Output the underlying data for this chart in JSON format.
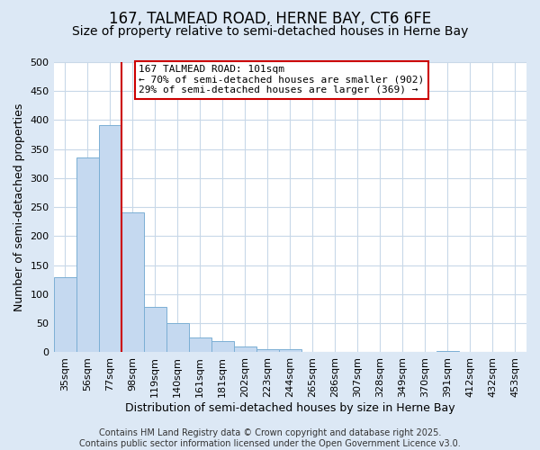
{
  "title_line1": "167, TALMEAD ROAD, HERNE BAY, CT6 6FE",
  "title_line2": "Size of property relative to semi-detached houses in Herne Bay",
  "xlabel": "Distribution of semi-detached houses by size in Herne Bay",
  "ylabel": "Number of semi-detached properties",
  "categories": [
    "35sqm",
    "56sqm",
    "77sqm",
    "98sqm",
    "119sqm",
    "140sqm",
    "161sqm",
    "181sqm",
    "202sqm",
    "223sqm",
    "244sqm",
    "265sqm",
    "286sqm",
    "307sqm",
    "328sqm",
    "349sqm",
    "370sqm",
    "391sqm",
    "412sqm",
    "432sqm",
    "453sqm"
  ],
  "values": [
    130,
    335,
    392,
    241,
    78,
    51,
    26,
    20,
    10,
    5,
    5,
    0,
    0,
    0,
    0,
    0,
    0,
    3,
    0,
    0,
    0
  ],
  "bar_color": "#c5d9f0",
  "bar_edge_color": "#7bafd4",
  "vline_color": "#cc0000",
  "vline_x_index": 3,
  "annotation_text": "167 TALMEAD ROAD: 101sqm\n← 70% of semi-detached houses are smaller (902)\n29% of semi-detached houses are larger (369) →",
  "annotation_box_facecolor": "white",
  "annotation_box_edgecolor": "#cc0000",
  "ylim": [
    0,
    500
  ],
  "yticks": [
    0,
    50,
    100,
    150,
    200,
    250,
    300,
    350,
    400,
    450,
    500
  ],
  "figure_facecolor": "#dce8f5",
  "plot_facecolor": "#ffffff",
  "grid_color": "#c8d8e8",
  "title1_fontsize": 12,
  "title2_fontsize": 10,
  "xlabel_fontsize": 9,
  "ylabel_fontsize": 9,
  "tick_fontsize": 8,
  "annotation_fontsize": 8,
  "footnote_fontsize": 7,
  "footnote": "Contains HM Land Registry data © Crown copyright and database right 2025.\nContains public sector information licensed under the Open Government Licence v3.0."
}
